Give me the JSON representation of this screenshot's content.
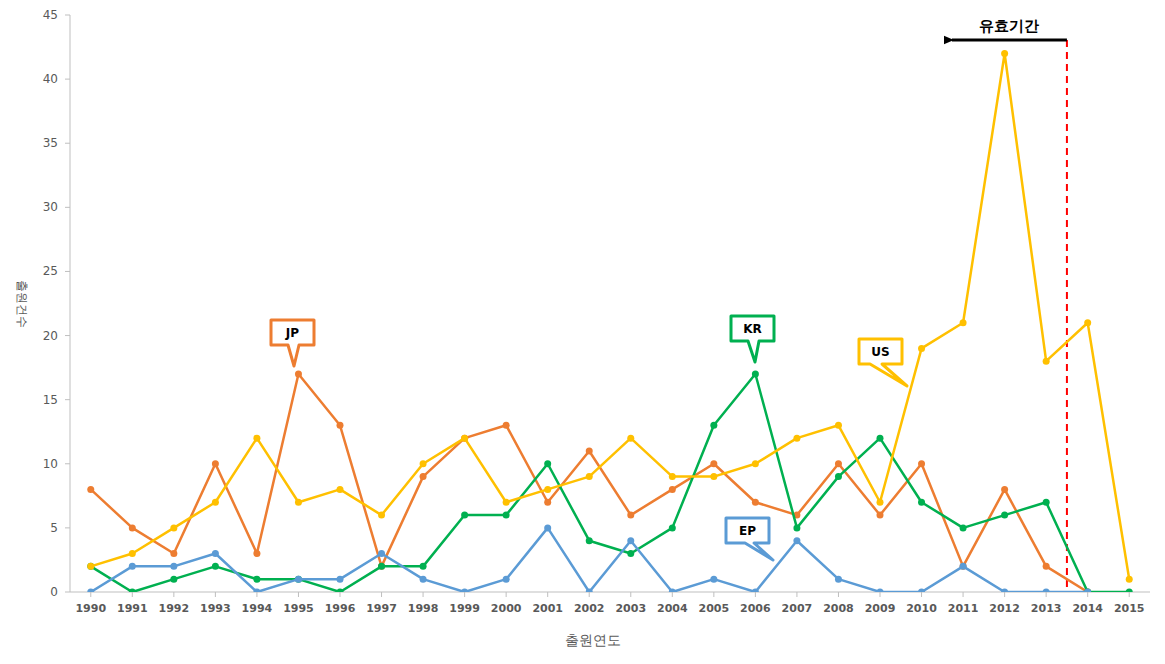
{
  "chart_data": {
    "type": "line",
    "x_label": "출원연도",
    "y_label": "출원건수",
    "x": [
      1990,
      1991,
      1992,
      1993,
      1994,
      1995,
      1996,
      1997,
      1998,
      1999,
      2000,
      2001,
      2002,
      2003,
      2004,
      2005,
      2006,
      2007,
      2008,
      2009,
      2010,
      2011,
      2012,
      2013,
      2014,
      2015
    ],
    "xlim": [
      1989.5,
      2015.5
    ],
    "xticks": [
      1990,
      1991,
      1992,
      1993,
      1994,
      1995,
      1996,
      1997,
      1998,
      1999,
      2000,
      2001,
      2002,
      2003,
      2004,
      2005,
      2006,
      2007,
      2008,
      2009,
      2010,
      2011,
      2012,
      2013,
      2014,
      2015
    ],
    "ylim": [
      0,
      45
    ],
    "yticks": [
      0,
      5,
      10,
      15,
      20,
      25,
      30,
      35,
      40,
      45
    ],
    "grid": false,
    "marker": "circle",
    "series": [
      {
        "name": "JP",
        "color": "#ED7D31",
        "values": [
          8,
          5,
          3,
          10,
          3,
          17,
          13,
          2,
          9,
          12,
          13,
          7,
          11,
          6,
          8,
          10,
          7,
          6,
          10,
          6,
          10,
          2,
          8,
          2,
          0,
          null
        ]
      },
      {
        "name": "KR",
        "color": "#00B050",
        "values": [
          2,
          0,
          1,
          2,
          1,
          1,
          0,
          2,
          2,
          6,
          6,
          10,
          4,
          3,
          5,
          13,
          17,
          5,
          9,
          12,
          7,
          5,
          6,
          7,
          0,
          0
        ]
      },
      {
        "name": "US",
        "color": "#FFC000",
        "values": [
          2,
          3,
          5,
          7,
          12,
          7,
          8,
          6,
          10,
          12,
          7,
          8,
          9,
          12,
          9,
          9,
          10,
          12,
          13,
          7,
          19,
          21,
          42,
          18,
          21,
          1
        ]
      },
      {
        "name": "EP",
        "color": "#5B9BD5",
        "values": [
          0,
          2,
          2,
          3,
          0,
          1,
          1,
          3,
          1,
          0,
          1,
          5,
          0,
          4,
          0,
          1,
          0,
          4,
          1,
          0,
          0,
          2,
          0,
          0,
          0,
          null
        ]
      }
    ],
    "annotations": [
      {
        "text": "유효기간",
        "x": 2013.5
      }
    ]
  }
}
